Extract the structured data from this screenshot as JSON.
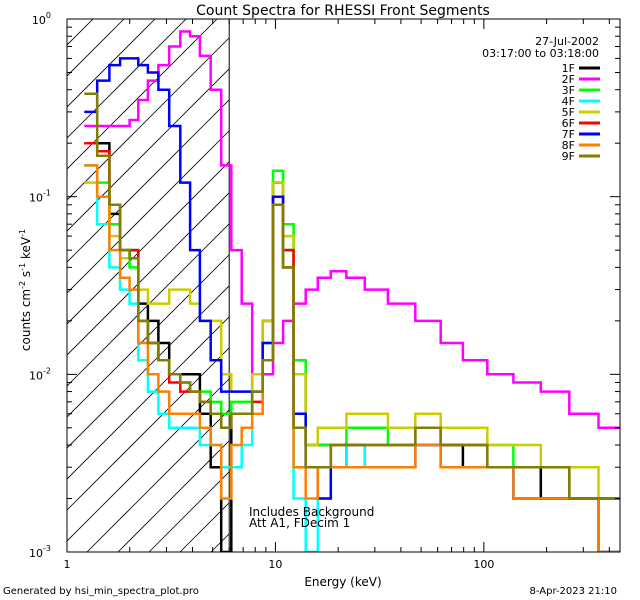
{
  "chart_data": {
    "type": "line",
    "title": "Count Spectra for RHESSI Front Segments",
    "xlabel": "Energy (keV)",
    "ylabel_parts": {
      "base": "counts cm",
      "exp1": "-2",
      "mid": " s",
      "exp2": "-1",
      "mid2": " keV",
      "exp3": "-1"
    },
    "xscale": "log",
    "yscale": "log",
    "xlim": [
      1,
      450
    ],
    "ylim": [
      0.001,
      1
    ],
    "x_ticks": [
      {
        "value": 1,
        "label": "1"
      },
      {
        "value": 10,
        "label": "10"
      },
      {
        "value": 100,
        "label": "100"
      }
    ],
    "y_ticks": [
      {
        "value": 1,
        "base": "10",
        "exp": "0"
      },
      {
        "value": 0.1,
        "base": "10",
        "exp": "-1"
      },
      {
        "value": 0.01,
        "base": "10",
        "exp": "-2"
      },
      {
        "value": 0.001,
        "base": "10",
        "exp": "-3"
      }
    ],
    "date": "27-Jul-2002",
    "time_range": "03:17:00 to 03:18:00",
    "vertical_marker_energy": 6,
    "annotations": [
      "Includes Background",
      "Att A1, FDecim 1"
    ],
    "legend_position": "top-right",
    "series": [
      {
        "name": "1F",
        "color": "#000000",
        "values": [
          0.2,
          0.2,
          0.08,
          0.05,
          0.05,
          0.025,
          0.02,
          0.015,
          0.01,
          0.01,
          0.01,
          0.006,
          0.003,
          0.001,
          0.006,
          0.006,
          0.01,
          0.02,
          0.12,
          0.05,
          0.01,
          0.004,
          0.004,
          0.003,
          0.004,
          0.003,
          0.003,
          0.005,
          0.004,
          0.003,
          0.003,
          0.003,
          0.002,
          0.002,
          0.002
        ]
      },
      {
        "name": "2F",
        "color": "#ff00ff",
        "values": [
          0.25,
          0.25,
          0.25,
          0.25,
          0.27,
          0.35,
          0.45,
          0.55,
          0.7,
          0.85,
          0.8,
          0.62,
          0.4,
          0.15,
          0.05,
          0.025,
          0.01,
          0.01,
          0.015,
          0.02,
          0.025,
          0.03,
          0.035,
          0.038,
          0.035,
          0.03,
          0.025,
          0.02,
          0.015,
          0.012,
          0.01,
          0.009,
          0.008,
          0.006,
          0.005
        ]
      },
      {
        "name": "3F",
        "color": "#00ff00",
        "values": [
          0.15,
          0.12,
          0.07,
          0.05,
          0.04,
          0.02,
          0.015,
          0.012,
          0.01,
          0.009,
          0.008,
          0.008,
          0.007,
          0.006,
          0.007,
          0.007,
          0.008,
          0.015,
          0.14,
          0.07,
          0.012,
          0.004,
          0.004,
          0.004,
          0.005,
          0.005,
          0.004,
          0.005,
          0.004,
          0.004,
          0.004,
          0.003,
          0.003,
          0.002,
          0.002
        ]
      },
      {
        "name": "4F",
        "color": "#00ffff",
        "values": [
          0.15,
          0.07,
          0.04,
          0.03,
          0.025,
          0.012,
          0.008,
          0.006,
          0.005,
          0.005,
          0.005,
          0.004,
          0.004,
          0.003,
          0.003,
          0.004,
          0.006,
          0.015,
          0.1,
          0.05,
          0.002,
          0.001,
          0.002,
          0.003,
          0.004,
          0.003,
          0.003,
          0.004,
          0.003,
          0.003,
          0.003,
          0.002,
          0.002,
          0.002,
          0.001
        ]
      },
      {
        "name": "5F",
        "color": "#cccc00",
        "values": [
          0.12,
          0.1,
          0.06,
          0.045,
          0.045,
          0.03,
          0.025,
          0.025,
          0.03,
          0.03,
          0.025,
          0.02,
          0.02,
          0.01,
          0.008,
          0.008,
          0.01,
          0.02,
          0.12,
          0.06,
          0.01,
          0.004,
          0.005,
          0.005,
          0.006,
          0.006,
          0.005,
          0.006,
          0.005,
          0.005,
          0.004,
          0.004,
          0.003,
          0.003,
          0.002
        ]
      },
      {
        "name": "6F",
        "color": "#ff0000",
        "values": [
          0.2,
          0.18,
          0.09,
          0.05,
          0.05,
          0.02,
          0.015,
          0.012,
          0.009,
          0.008,
          0.008,
          0.007,
          0.006,
          0.005,
          0.006,
          0.006,
          0.007,
          0.012,
          0.1,
          0.05,
          0.005,
          0.003,
          0.003,
          0.004,
          0.004,
          0.004,
          0.004,
          0.005,
          0.004,
          0.004,
          0.003,
          0.003,
          0.003,
          0.002,
          0.002
        ]
      },
      {
        "name": "7F",
        "color": "#0000ff",
        "values": [
          0.3,
          0.45,
          0.55,
          0.6,
          0.6,
          0.55,
          0.5,
          0.4,
          0.25,
          0.12,
          0.05,
          0.02,
          0.012,
          0.008,
          0.008,
          0.008,
          0.008,
          0.015,
          0.1,
          0.04,
          0.006,
          0.003,
          0.002,
          0.003,
          0.003,
          0.003,
          0.003,
          0.004,
          0.003,
          0.003,
          0.003,
          0.002,
          0.002,
          0.002,
          0.001
        ]
      },
      {
        "name": "8F",
        "color": "#ff8000",
        "values": [
          0.15,
          0.1,
          0.05,
          0.035,
          0.03,
          0.015,
          0.01,
          0.008,
          0.006,
          0.006,
          0.006,
          0.005,
          0.004,
          0.002,
          0.004,
          0.005,
          0.006,
          0.012,
          0.09,
          0.04,
          0.003,
          0.002,
          0.003,
          0.003,
          0.003,
          0.003,
          0.003,
          0.004,
          0.003,
          0.003,
          0.003,
          0.002,
          0.002,
          0.002,
          0.001
        ]
      },
      {
        "name": "9F",
        "color": "#808000",
        "values": [
          0.38,
          0.17,
          0.09,
          0.05,
          0.045,
          0.02,
          0.015,
          0.012,
          0.01,
          0.009,
          0.008,
          0.007,
          0.006,
          0.005,
          0.006,
          0.006,
          0.008,
          0.012,
          0.09,
          0.04,
          0.005,
          0.003,
          0.003,
          0.004,
          0.004,
          0.004,
          0.004,
          0.005,
          0.004,
          0.004,
          0.003,
          0.003,
          0.003,
          0.002,
          0.002
        ]
      }
    ],
    "energies": [
      1.3,
      1.5,
      1.7,
      1.9,
      2.1,
      2.3,
      2.6,
      2.9,
      3.3,
      3.7,
      4.1,
      4.6,
      5.2,
      5.8,
      6.5,
      7.3,
      8.2,
      9.2,
      10.3,
      11.5,
      13,
      15,
      17,
      20,
      24,
      30,
      40,
      55,
      70,
      90,
      120,
      160,
      220,
      300,
      420
    ]
  },
  "footer": {
    "generated_by": "Generated by hsi_min_spectra_plot.pro",
    "timestamp": "8-Apr-2023 21:10"
  }
}
